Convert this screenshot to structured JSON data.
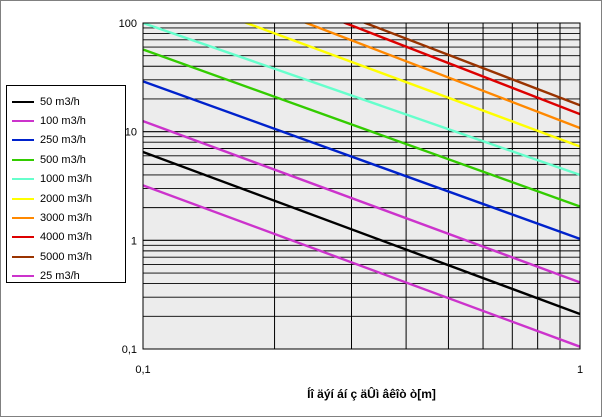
{
  "chart_data": {
    "type": "line",
    "title": "",
    "xlabel": "Íî äýí áí ç äÛì âêîò ò[m]",
    "ylabel": "",
    "x_scale": "log",
    "y_scale": "log",
    "xlim": [
      0.1,
      1
    ],
    "ylim": [
      0.1,
      100
    ],
    "x_ticks": [
      "0,1",
      "1"
    ],
    "y_ticks": [
      "0,1",
      "1",
      "10",
      "100"
    ],
    "grid": true,
    "legend_position": "left",
    "series": [
      {
        "name": "50 m3/h",
        "color": "#000000",
        "points": [
          [
            0.1,
            6.5
          ],
          [
            1,
            0.21
          ]
        ]
      },
      {
        "name": "100 m3/h",
        "color": "#cc33cc",
        "points": [
          [
            0.1,
            12.5
          ],
          [
            1,
            0.41
          ]
        ]
      },
      {
        "name": "250 m3/h",
        "color": "#0022cc",
        "points": [
          [
            0.1,
            29
          ],
          [
            1,
            1.03
          ]
        ]
      },
      {
        "name": "500 m3/h",
        "color": "#33cc00",
        "points": [
          [
            0.1,
            57
          ],
          [
            1,
            2.05
          ]
        ]
      },
      {
        "name": "1000 m3/h",
        "color": "#66ffcc",
        "points": [
          [
            0.1,
            100
          ],
          [
            1,
            4.0
          ]
        ]
      },
      {
        "name": "2000 m3/h",
        "color": "#ffff00",
        "points": [
          [
            0.16,
            112
          ],
          [
            1,
            7.3
          ]
        ]
      },
      {
        "name": "3000 m3/h",
        "color": "#ff8800",
        "points": [
          [
            0.22,
            112
          ],
          [
            1,
            10.8
          ]
        ]
      },
      {
        "name": "4000 m3/h",
        "color": "#dd0000",
        "points": [
          [
            0.27,
            112
          ],
          [
            1,
            14.5
          ]
        ]
      },
      {
        "name": "5000 m3/h",
        "color": "#993300",
        "points": [
          [
            0.3,
            112
          ],
          [
            1,
            17.5
          ]
        ]
      },
      {
        "name": "25 m3/h",
        "color": "#cc33cc",
        "points": [
          [
            0.1,
            3.2
          ],
          [
            1,
            0.105
          ]
        ]
      }
    ]
  }
}
